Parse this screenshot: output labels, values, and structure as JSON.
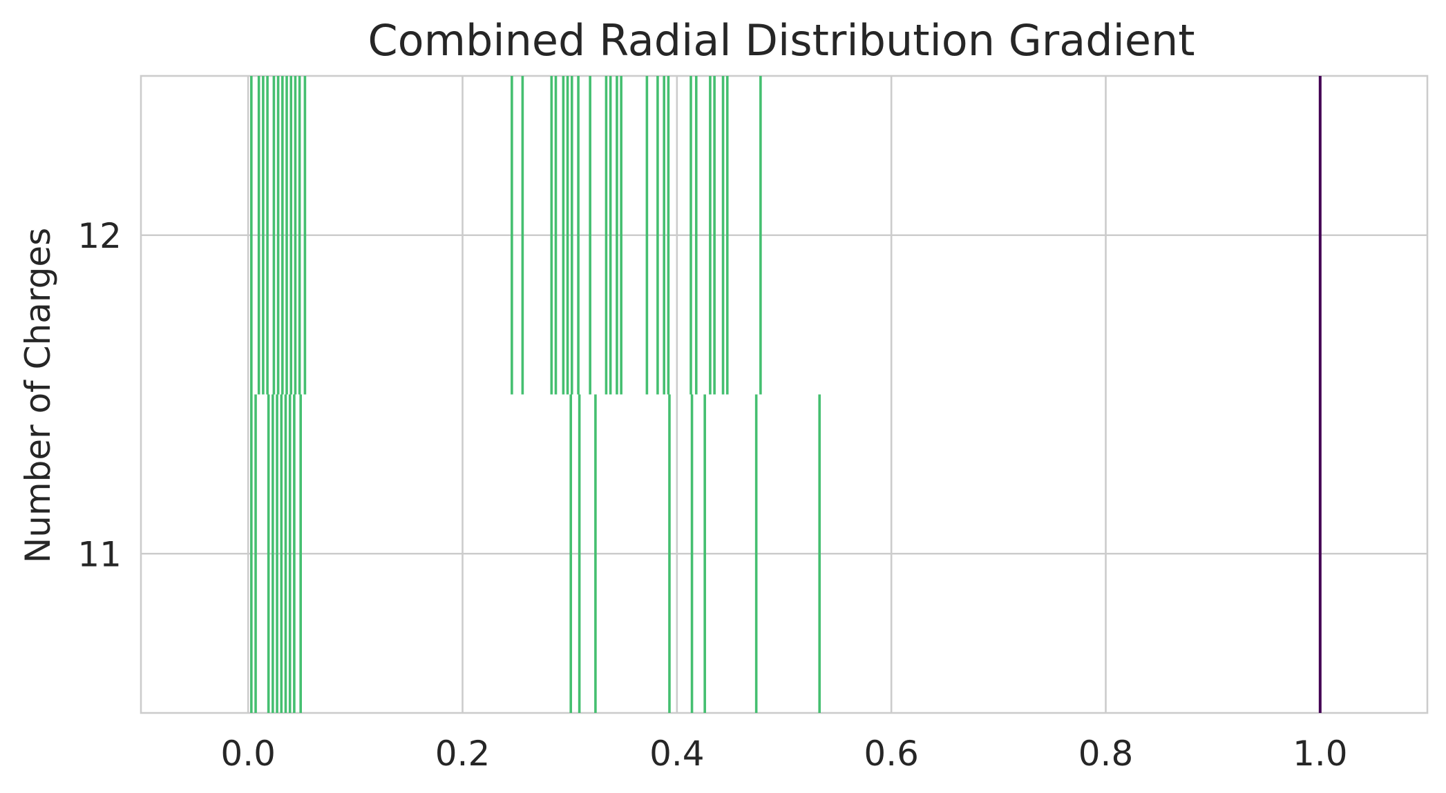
{
  "chart_data": {
    "type": "bar",
    "title": "Combined Radial Distribution Gradient",
    "xlabel": "",
    "ylabel": "Number of Charges",
    "xlim": [
      -0.1,
      1.1
    ],
    "ylim": [
      10.5,
      12.5
    ],
    "grid": true,
    "x_ticks": [
      0.0,
      0.2,
      0.4,
      0.6,
      0.8,
      1.0
    ],
    "x_tick_labels": [
      "0.0",
      "0.2",
      "0.4",
      "0.6",
      "0.8",
      "1.0"
    ],
    "y_ticks": [
      11,
      12
    ],
    "y_tick_labels": [
      "11",
      "12"
    ],
    "series": [
      {
        "color": "#45bf70",
        "segments": [
          {
            "x": 0.003,
            "y0": 10.5,
            "y1": 11.5
          },
          {
            "x": 0.007,
            "y0": 10.5,
            "y1": 11.5
          },
          {
            "x": 0.019,
            "y0": 10.5,
            "y1": 11.5
          },
          {
            "x": 0.023,
            "y0": 10.5,
            "y1": 11.5
          },
          {
            "x": 0.027,
            "y0": 10.5,
            "y1": 11.5
          },
          {
            "x": 0.031,
            "y0": 10.5,
            "y1": 11.5
          },
          {
            "x": 0.035,
            "y0": 10.5,
            "y1": 11.5
          },
          {
            "x": 0.039,
            "y0": 10.5,
            "y1": 11.5
          },
          {
            "x": 0.043,
            "y0": 10.5,
            "y1": 11.5
          },
          {
            "x": 0.049,
            "y0": 10.5,
            "y1": 11.5
          },
          {
            "x": 0.301,
            "y0": 10.5,
            "y1": 11.5
          },
          {
            "x": 0.309,
            "y0": 10.5,
            "y1": 11.5
          },
          {
            "x": 0.324,
            "y0": 10.5,
            "y1": 11.5
          },
          {
            "x": 0.393,
            "y0": 10.5,
            "y1": 11.5
          },
          {
            "x": 0.414,
            "y0": 10.5,
            "y1": 11.5
          },
          {
            "x": 0.426,
            "y0": 10.5,
            "y1": 11.5
          },
          {
            "x": 0.474,
            "y0": 10.5,
            "y1": 11.5
          },
          {
            "x": 0.533,
            "y0": 10.5,
            "y1": 11.5
          },
          {
            "x": 0.003,
            "y0": 11.5,
            "y1": 12.5
          },
          {
            "x": 0.01,
            "y0": 11.5,
            "y1": 12.5
          },
          {
            "x": 0.014,
            "y0": 11.5,
            "y1": 12.5
          },
          {
            "x": 0.018,
            "y0": 11.5,
            "y1": 12.5
          },
          {
            "x": 0.024,
            "y0": 11.5,
            "y1": 12.5
          },
          {
            "x": 0.028,
            "y0": 11.5,
            "y1": 12.5
          },
          {
            "x": 0.032,
            "y0": 11.5,
            "y1": 12.5
          },
          {
            "x": 0.036,
            "y0": 11.5,
            "y1": 12.5
          },
          {
            "x": 0.04,
            "y0": 11.5,
            "y1": 12.5
          },
          {
            "x": 0.044,
            "y0": 11.5,
            "y1": 12.5
          },
          {
            "x": 0.048,
            "y0": 11.5,
            "y1": 12.5
          },
          {
            "x": 0.053,
            "y0": 11.5,
            "y1": 12.5
          },
          {
            "x": 0.246,
            "y0": 11.5,
            "y1": 12.5
          },
          {
            "x": 0.256,
            "y0": 11.5,
            "y1": 12.5
          },
          {
            "x": 0.283,
            "y0": 11.5,
            "y1": 12.5
          },
          {
            "x": 0.287,
            "y0": 11.5,
            "y1": 12.5
          },
          {
            "x": 0.294,
            "y0": 11.5,
            "y1": 12.5
          },
          {
            "x": 0.298,
            "y0": 11.5,
            "y1": 12.5
          },
          {
            "x": 0.302,
            "y0": 11.5,
            "y1": 12.5
          },
          {
            "x": 0.308,
            "y0": 11.5,
            "y1": 12.5
          },
          {
            "x": 0.319,
            "y0": 11.5,
            "y1": 12.5
          },
          {
            "x": 0.334,
            "y0": 11.5,
            "y1": 12.5
          },
          {
            "x": 0.338,
            "y0": 11.5,
            "y1": 12.5
          },
          {
            "x": 0.344,
            "y0": 11.5,
            "y1": 12.5
          },
          {
            "x": 0.348,
            "y0": 11.5,
            "y1": 12.5
          },
          {
            "x": 0.372,
            "y0": 11.5,
            "y1": 12.5
          },
          {
            "x": 0.382,
            "y0": 11.5,
            "y1": 12.5
          },
          {
            "x": 0.388,
            "y0": 11.5,
            "y1": 12.5
          },
          {
            "x": 0.392,
            "y0": 11.5,
            "y1": 12.5
          },
          {
            "x": 0.413,
            "y0": 11.5,
            "y1": 12.5
          },
          {
            "x": 0.418,
            "y0": 11.5,
            "y1": 12.5
          },
          {
            "x": 0.431,
            "y0": 11.5,
            "y1": 12.5
          },
          {
            "x": 0.435,
            "y0": 11.5,
            "y1": 12.5
          },
          {
            "x": 0.443,
            "y0": 11.5,
            "y1": 12.5
          },
          {
            "x": 0.447,
            "y0": 11.5,
            "y1": 12.5
          },
          {
            "x": 0.478,
            "y0": 11.5,
            "y1": 12.5
          }
        ]
      },
      {
        "color": "#440154",
        "segments": [
          {
            "x": 1.0,
            "y0": 10.5,
            "y1": 12.5
          }
        ]
      }
    ]
  }
}
